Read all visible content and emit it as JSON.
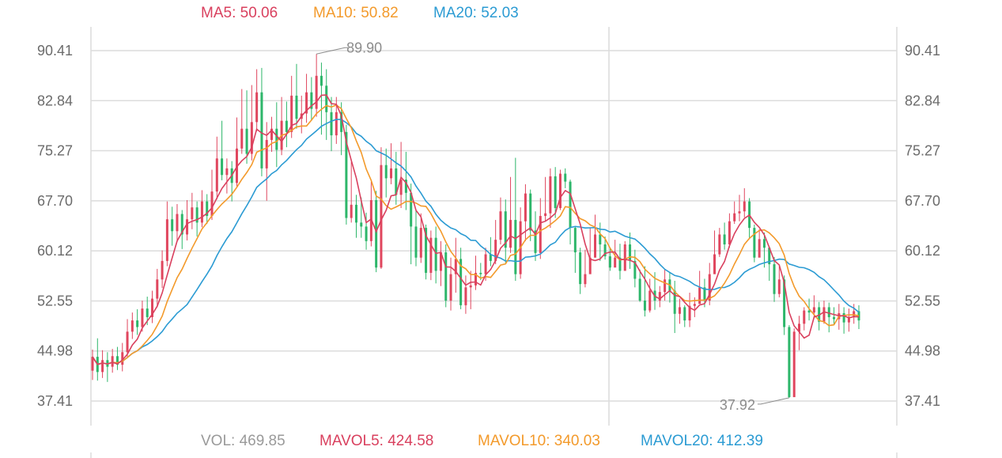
{
  "chart_data": {
    "type": "candlestick",
    "indicators": {
      "ma5": {
        "label": "MA5: 50.06",
        "color": "#d9405e"
      },
      "ma10": {
        "label": "MA10: 50.82",
        "color": "#f39a2b"
      },
      "ma20": {
        "label": "MA20: 52.03",
        "color": "#2b9bd3"
      }
    },
    "volume_indicators": {
      "vol": {
        "label": "VOL: 469.85",
        "color": "#9a9a9a"
      },
      "mavol5": {
        "label": "MAVOL5: 424.58",
        "color": "#d9405e"
      },
      "mavol10": {
        "label": "MAVOL10: 340.03",
        "color": "#f39a2b"
      },
      "mavol20": {
        "label": "MAVOL20: 412.39",
        "color": "#2b9bd3"
      }
    },
    "y_ticks": [
      "90.41",
      "82.84",
      "75.27",
      "67.70",
      "60.12",
      "52.55",
      "44.98",
      "37.41"
    ],
    "ylim": [
      34.0,
      94.0
    ],
    "annotations": {
      "high": "89.90",
      "low": "37.92"
    },
    "up_color": "#e0465e",
    "down_color": "#2db66a",
    "grid": true,
    "candles": [
      [
        42.0,
        44.1,
        45.2,
        40.6
      ],
      [
        44.1,
        41.8,
        46.9,
        40.5
      ],
      [
        41.8,
        43.6,
        45.1,
        40.9
      ],
      [
        43.6,
        42.6,
        44.8,
        40.3
      ],
      [
        42.6,
        44.2,
        45.3,
        41.7
      ],
      [
        44.2,
        42.9,
        45.6,
        42.1
      ],
      [
        42.9,
        44.8,
        46.2,
        41.9
      ],
      [
        44.8,
        47.9,
        49.8,
        44.1
      ],
      [
        47.9,
        49.6,
        50.8,
        46.8
      ],
      [
        49.6,
        48.6,
        51.3,
        47.4
      ],
      [
        48.6,
        51.4,
        52.6,
        47.9
      ],
      [
        51.4,
        50.1,
        53.2,
        48.9
      ],
      [
        50.1,
        52.9,
        54.1,
        49.2
      ],
      [
        52.9,
        55.8,
        57.4,
        51.6
      ],
      [
        55.8,
        58.6,
        60.2,
        54.5
      ],
      [
        58.6,
        64.9,
        67.6,
        57.8
      ],
      [
        64.9,
        63.1,
        66.8,
        60.9
      ],
      [
        63.1,
        65.7,
        67.2,
        61.6
      ],
      [
        65.7,
        62.6,
        66.3,
        60.4
      ],
      [
        62.6,
        64.9,
        67.8,
        61.7
      ],
      [
        64.9,
        66.7,
        68.9,
        63.4
      ],
      [
        66.7,
        64.4,
        67.6,
        62.3
      ],
      [
        64.4,
        67.6,
        69.3,
        63.7
      ],
      [
        67.6,
        65.4,
        68.7,
        64.2
      ],
      [
        65.4,
        69.1,
        72.4,
        64.8
      ],
      [
        69.1,
        74.1,
        77.4,
        67.9
      ],
      [
        74.1,
        71.6,
        79.8,
        70.8
      ],
      [
        71.6,
        72.6,
        74.1,
        68.8
      ],
      [
        72.6,
        70.4,
        73.7,
        67.6
      ],
      [
        70.4,
        75.6,
        80.3,
        69.8
      ],
      [
        75.6,
        78.6,
        84.6,
        74.8
      ],
      [
        78.6,
        74.8,
        84.4,
        73.3
      ],
      [
        74.8,
        79.6,
        85.2,
        73.8
      ],
      [
        79.6,
        84.1,
        87.6,
        78.2
      ],
      [
        84.1,
        72.6,
        87.8,
        71.4
      ],
      [
        72.6,
        76.9,
        79.6,
        67.7
      ],
      [
        76.9,
        78.6,
        80.4,
        75.1
      ],
      [
        78.6,
        75.4,
        82.6,
        72.8
      ],
      [
        75.4,
        79.8,
        83.4,
        74.6
      ],
      [
        79.8,
        78.1,
        82.7,
        75.8
      ],
      [
        78.1,
        83.6,
        86.6,
        77.2
      ],
      [
        83.6,
        80.1,
        88.4,
        78.6
      ],
      [
        80.1,
        80.9,
        83.6,
        77.9
      ],
      [
        80.9,
        84.1,
        86.9,
        79.5
      ],
      [
        84.1,
        81.6,
        86.4,
        79.8
      ],
      [
        81.6,
        86.6,
        89.9,
        80.4
      ],
      [
        86.6,
        85.1,
        88.6,
        77.7
      ],
      [
        85.1,
        81.1,
        87.6,
        76.9
      ],
      [
        81.1,
        77.6,
        83.4,
        75.2
      ],
      [
        77.6,
        81.1,
        83.4,
        76.3
      ],
      [
        81.1,
        78.1,
        82.6,
        74.6
      ],
      [
        78.1,
        65.1,
        79.2,
        64.1
      ],
      [
        65.1,
        67.1,
        73.6,
        64.4
      ],
      [
        67.1,
        64.4,
        68.6,
        62.1
      ],
      [
        64.4,
        63.8,
        68.2,
        62.1
      ],
      [
        63.8,
        61.6,
        65.9,
        60.3
      ],
      [
        61.6,
        67.8,
        70.6,
        60.8
      ],
      [
        67.8,
        57.6,
        69.2,
        56.9
      ],
      [
        57.6,
        73.1,
        75.8,
        57.4
      ],
      [
        73.1,
        71.1,
        75.6,
        68.2
      ],
      [
        71.1,
        72.6,
        76.4,
        70.2
      ],
      [
        72.6,
        68.6,
        75.1,
        67.1
      ],
      [
        68.6,
        70.9,
        76.6,
        66.6
      ],
      [
        70.9,
        68.9,
        75.1,
        66.3
      ],
      [
        68.9,
        63.8,
        70.3,
        58.1
      ],
      [
        63.8,
        59.1,
        66.3,
        57.8
      ],
      [
        59.1,
        63.6,
        65.8,
        58.3
      ],
      [
        63.6,
        56.8,
        64.1,
        55.8
      ],
      [
        56.8,
        62.1,
        63.2,
        55.7
      ],
      [
        62.1,
        57.1,
        63.8,
        55.2
      ],
      [
        57.1,
        59.9,
        61.6,
        54.8
      ],
      [
        59.9,
        52.6,
        61.1,
        51.6
      ],
      [
        52.6,
        56.6,
        59.1,
        51.1
      ],
      [
        56.6,
        58.9,
        62.1,
        53.8
      ],
      [
        58.9,
        51.9,
        60.6,
        51.3
      ],
      [
        51.9,
        54.6,
        56.4,
        50.6
      ],
      [
        54.6,
        54.9,
        57.1,
        51.3
      ],
      [
        54.9,
        56.8,
        59.4,
        54.2
      ],
      [
        56.8,
        56.6,
        58.3,
        55.7
      ],
      [
        56.6,
        59.6,
        60.6,
        55.6
      ],
      [
        59.6,
        58.6,
        62.2,
        57.8
      ],
      [
        58.6,
        61.8,
        64.8,
        58.1
      ],
      [
        61.8,
        66.1,
        68.2,
        61.1
      ],
      [
        66.1,
        60.6,
        67.9,
        58.3
      ],
      [
        60.6,
        64.8,
        71.3,
        59.8
      ],
      [
        64.8,
        56.6,
        74.2,
        55.6
      ],
      [
        56.6,
        64.6,
        66.7,
        55.9
      ],
      [
        64.6,
        68.8,
        70.2,
        61.6
      ],
      [
        68.8,
        63.2,
        69.4,
        61.6
      ],
      [
        63.2,
        59.8,
        66.1,
        58.6
      ],
      [
        59.8,
        65.4,
        68.1,
        58.9
      ],
      [
        65.4,
        65.8,
        71.3,
        64.6
      ],
      [
        65.8,
        71.4,
        72.6,
        63.6
      ],
      [
        71.4,
        66.6,
        72.8,
        65.1
      ],
      [
        66.6,
        71.8,
        72.4,
        66.3
      ],
      [
        71.8,
        70.6,
        72.6,
        69.6
      ],
      [
        70.6,
        63.6,
        70.9,
        61.1
      ],
      [
        63.6,
        59.9,
        63.8,
        56.8
      ],
      [
        59.9,
        55.1,
        60.6,
        53.6
      ],
      [
        55.1,
        56.6,
        60.3,
        54.6
      ],
      [
        56.6,
        59.1,
        63.6,
        58.1
      ],
      [
        59.1,
        62.6,
        65.6,
        59.2
      ],
      [
        62.6,
        61.1,
        64.4,
        58.6
      ],
      [
        61.1,
        59.3,
        62.3,
        58.8
      ],
      [
        59.3,
        57.6,
        60.6,
        57.1
      ],
      [
        57.6,
        59.1,
        61.8,
        57.8
      ],
      [
        59.1,
        57.1,
        61.2,
        55.8
      ],
      [
        57.1,
        61.1,
        61.6,
        57.6
      ],
      [
        61.1,
        58.6,
        62.9,
        57.4
      ],
      [
        58.6,
        55.9,
        60.3,
        54.6
      ],
      [
        55.9,
        52.6,
        57.3,
        52.4
      ],
      [
        52.6,
        51.1,
        57.8,
        50.2
      ],
      [
        51.1,
        54.1,
        55.9,
        50.8
      ],
      [
        54.1,
        52.6,
        56.9,
        51.2
      ],
      [
        52.6,
        53.9,
        54.8,
        51.6
      ],
      [
        53.9,
        55.8,
        57.4,
        52.6
      ],
      [
        55.8,
        54.1,
        56.8,
        52.3
      ],
      [
        54.1,
        50.6,
        55.6,
        47.7
      ],
      [
        50.6,
        51.6,
        52.9,
        49.1
      ],
      [
        51.6,
        49.6,
        51.9,
        48.6
      ],
      [
        49.6,
        51.8,
        53.8,
        48.6
      ],
      [
        51.8,
        52.1,
        53.1,
        50.1
      ],
      [
        52.1,
        54.6,
        57.1,
        52.2
      ],
      [
        54.6,
        52.6,
        55.9,
        51.6
      ],
      [
        52.6,
        56.6,
        58.3,
        51.9
      ],
      [
        56.6,
        59.6,
        63.2,
        56.9
      ],
      [
        59.6,
        62.6,
        63.6,
        59.2
      ],
      [
        62.6,
        61.1,
        64.4,
        60.3
      ],
      [
        61.1,
        64.6,
        65.8,
        60.6
      ],
      [
        64.6,
        65.8,
        67.6,
        64.2
      ],
      [
        65.8,
        66.1,
        68.6,
        64.6
      ],
      [
        66.1,
        67.6,
        69.6,
        65.2
      ],
      [
        67.6,
        63.6,
        68.1,
        61.9
      ],
      [
        63.6,
        59.1,
        64.1,
        58.4
      ],
      [
        59.1,
        61.9,
        63.4,
        59.6
      ],
      [
        61.9,
        60.6,
        62.9,
        57.6
      ],
      [
        60.6,
        58.1,
        60.8,
        55.6
      ],
      [
        58.1,
        53.6,
        59.2,
        52.4
      ],
      [
        53.6,
        55.8,
        57.9,
        53.1
      ],
      [
        55.8,
        48.6,
        56.4,
        47.4
      ],
      [
        48.6,
        38.0,
        48.9,
        37.9
      ],
      [
        38.0,
        47.9,
        48.4,
        41.6
      ],
      [
        47.9,
        49.1,
        50.3,
        45.1
      ],
      [
        49.1,
        51.1,
        51.6,
        48.1
      ],
      [
        51.1,
        50.8,
        52.9,
        49.6
      ],
      [
        50.8,
        51.6,
        53.4,
        50.1
      ],
      [
        51.6,
        49.4,
        52.4,
        48.1
      ],
      [
        49.4,
        51.6,
        52.6,
        49.1
      ],
      [
        51.6,
        50.1,
        52.3,
        47.8
      ],
      [
        50.1,
        49.8,
        51.6,
        48.9
      ],
      [
        49.8,
        50.7,
        52.1,
        48.2
      ],
      [
        50.7,
        49.3,
        51.6,
        47.6
      ],
      [
        49.3,
        50.1,
        51.4,
        47.9
      ],
      [
        50.1,
        51.0,
        52.1,
        49.1
      ],
      [
        51.0,
        49.6,
        51.9,
        48.3
      ]
    ]
  }
}
